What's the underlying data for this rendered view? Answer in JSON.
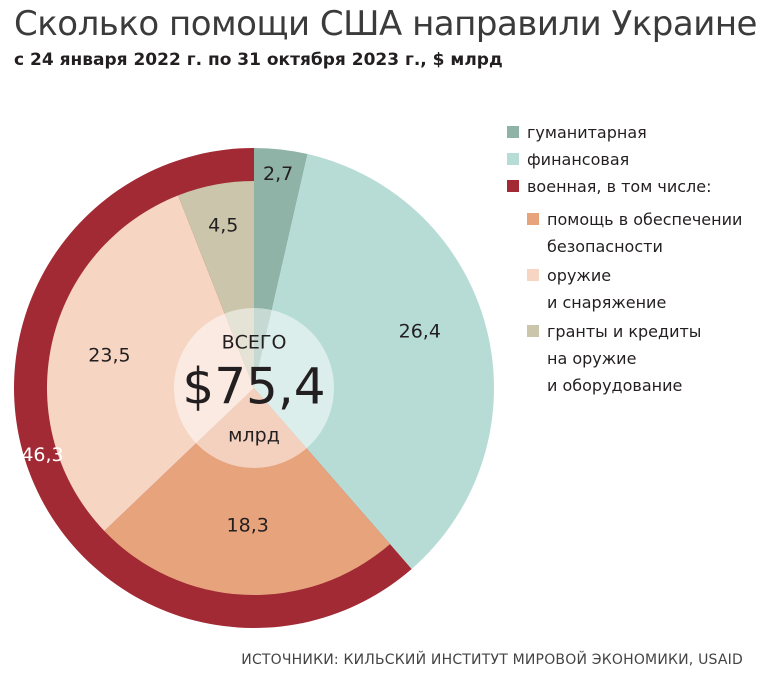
{
  "title": "Сколько помощи США направили Украине",
  "subtitle": "с 24 января 2022 г. по 31 октября 2023 г., $ млрд",
  "source": "ИСТОЧНИКИ: КИЛЬСКИЙ ИНСТИТУТ МИРОВОЙ ЭКОНОМИКИ, USAID",
  "chart_data": {
    "type": "pie",
    "total": {
      "top": "ВСЕГО",
      "value": "$75,4",
      "unit": "млрд"
    },
    "outer": [
      {
        "name": "гуманитарная",
        "value": 2.7,
        "label": "2,7",
        "color": "#8fb3a6"
      },
      {
        "name": "финансовая",
        "value": 26.4,
        "label": "26,4",
        "color": "#b7dcd6"
      },
      {
        "name": "военная, в том числе:",
        "value": 46.3,
        "label": "46,3",
        "color": "#a22a35"
      }
    ],
    "military_breakdown": [
      {
        "name": "помощь в обеспечении\nбезопасности",
        "value": 18.3,
        "label": "18,3",
        "color": "#e6a37c"
      },
      {
        "name": "оружие\nи снаряжение",
        "value": 23.5,
        "label": "23,5",
        "color": "#f6d5c2"
      },
      {
        "name": "гранты и кредиты\nна оружие\nи оборудование",
        "value": 4.5,
        "label": "4,5",
        "color": "#cbc6ab"
      }
    ]
  }
}
